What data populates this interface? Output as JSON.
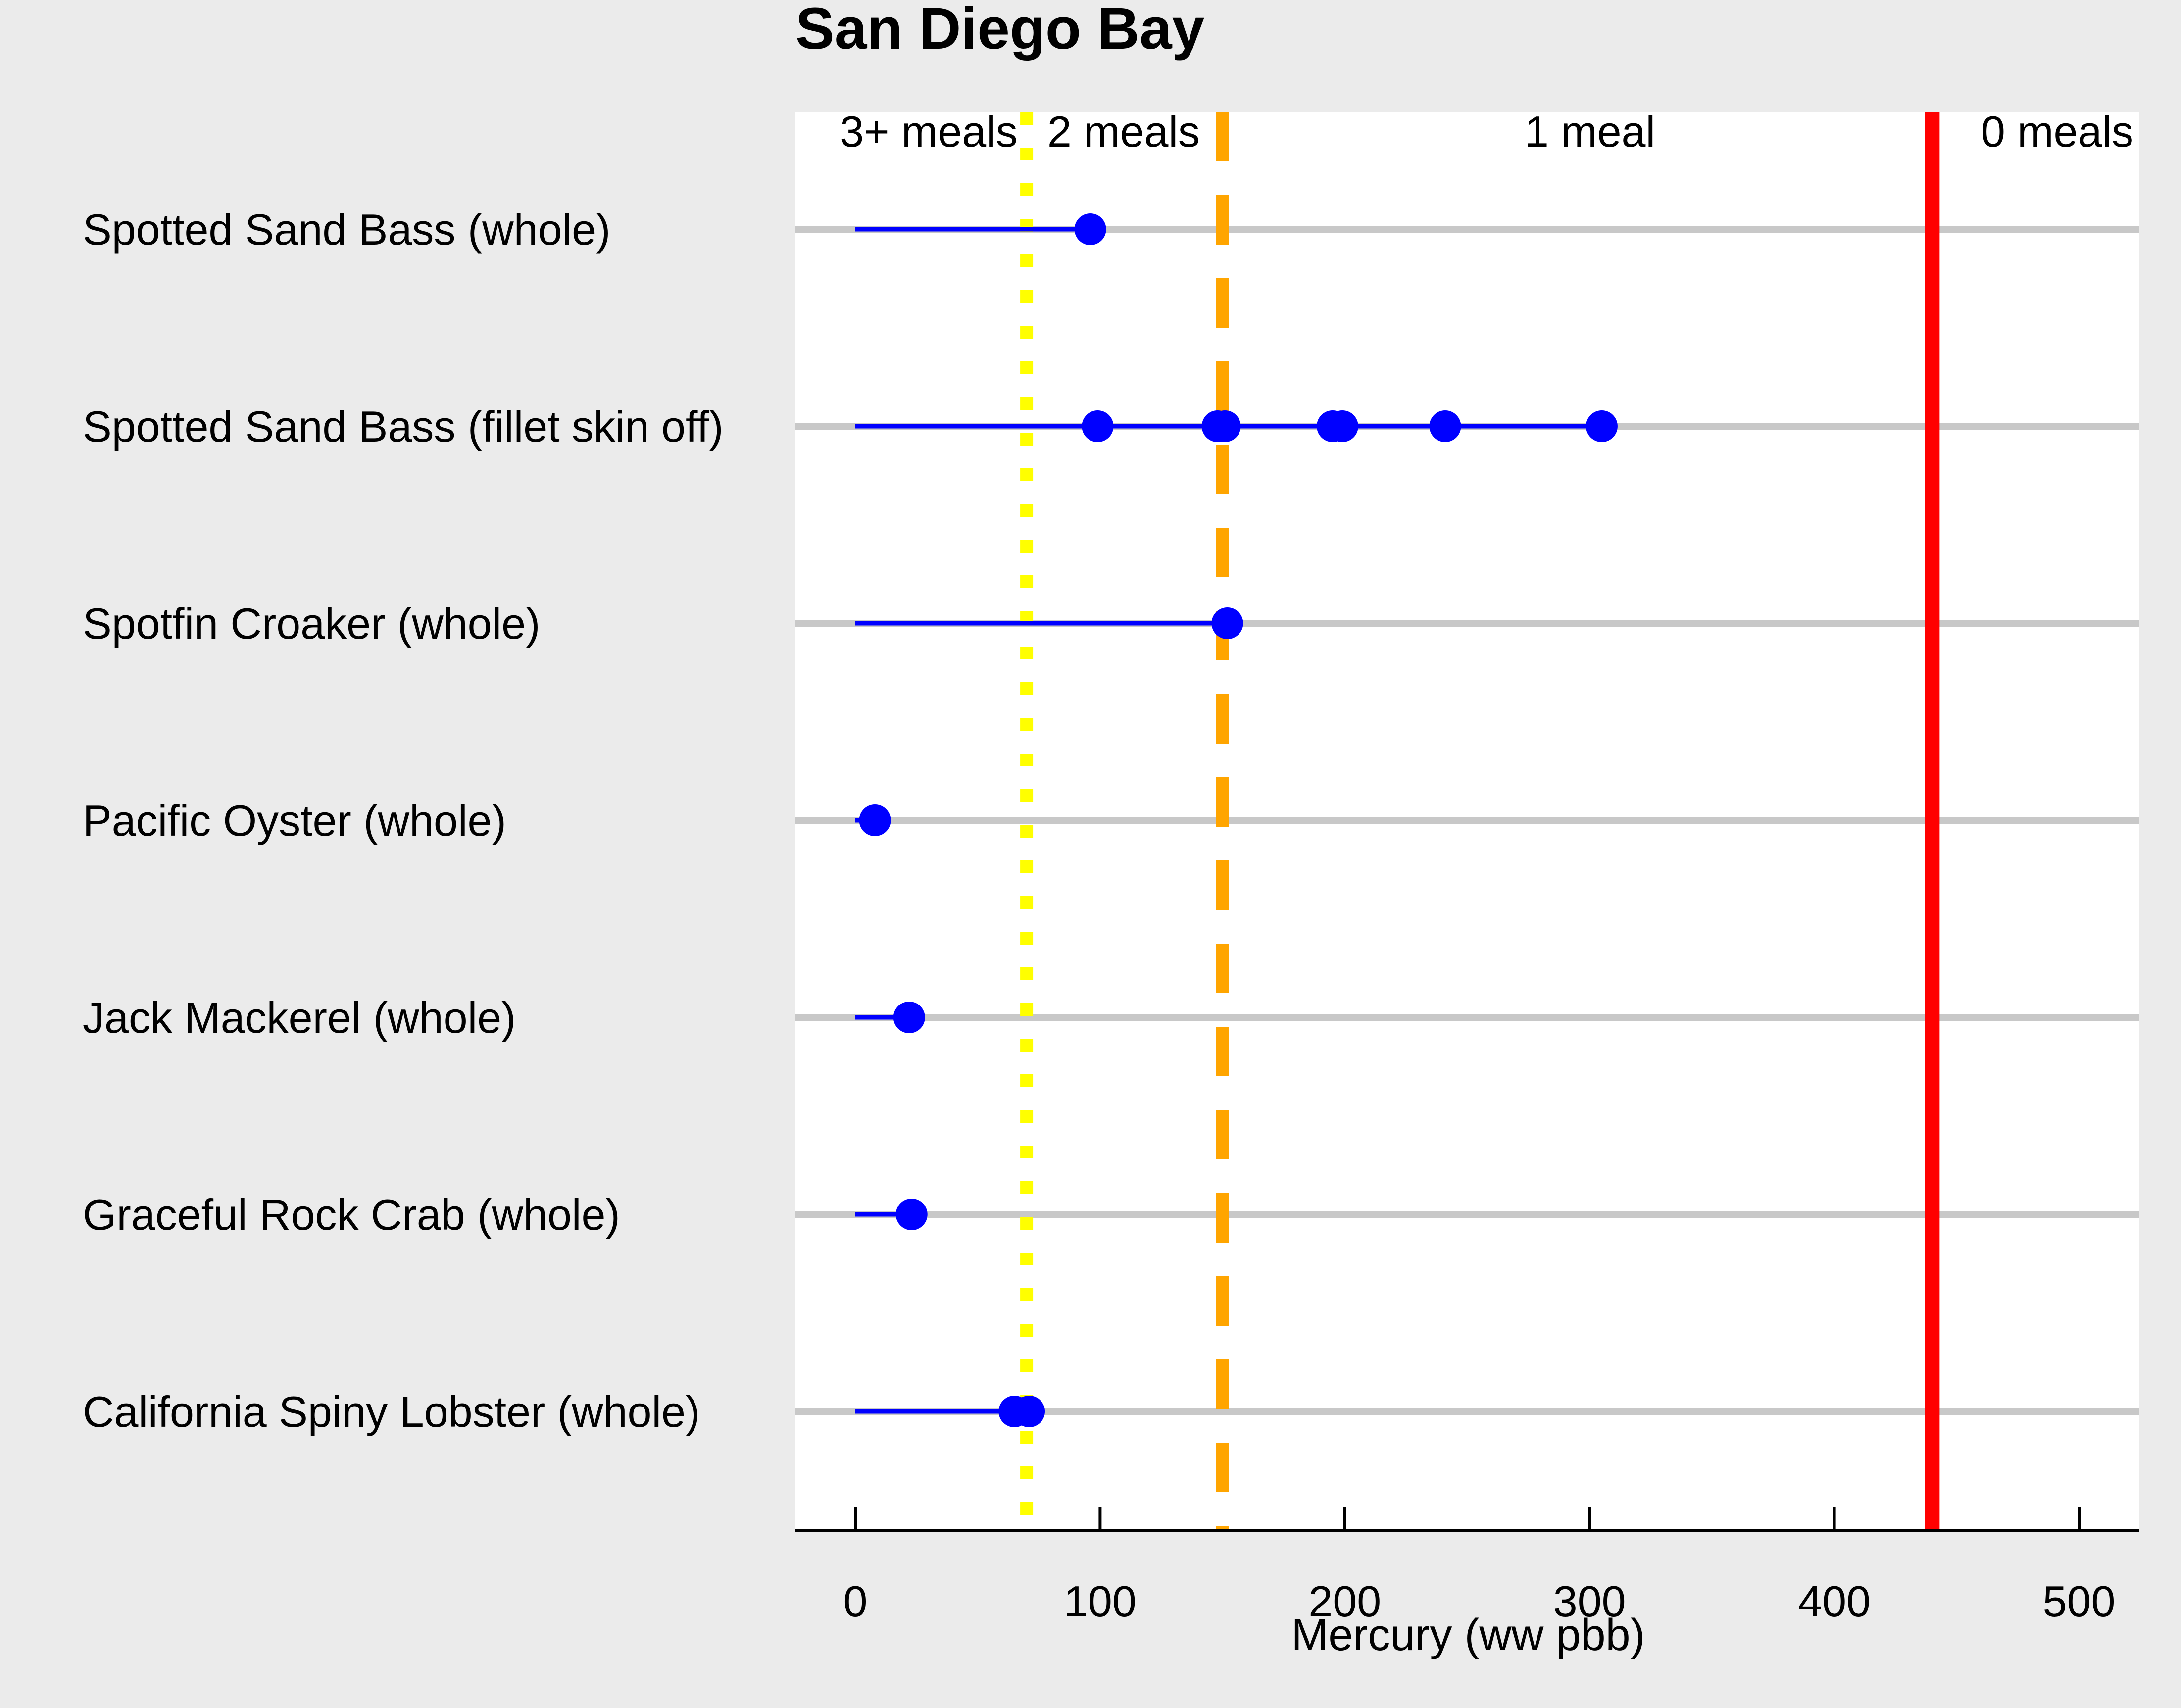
{
  "chart_data": {
    "type": "scatter",
    "title": "San Diego Bay",
    "xlabel": "Mercury (ww pbb)",
    "ylabel": "",
    "xlim": [
      -25,
      525
    ],
    "xticks": [
      0,
      100,
      200,
      300,
      400,
      500
    ],
    "xtick_labels": [
      "0",
      "100",
      "200",
      "300",
      "400",
      "500"
    ],
    "grid": true,
    "legend": "none",
    "categories": [
      "Spotted Sand Bass (whole)",
      "Spotted Sand Bass (fillet skin off)",
      "Spotfin Croaker (whole)",
      "Pacific Oyster (whole)",
      "Jack Mackerel (whole)",
      "Graceful Rock Crab (whole)",
      "California Spiny Lobster (whole)"
    ],
    "series": [
      {
        "values": [
          [
            96
          ]
        ]
      },
      {
        "values": [
          [
            99,
            148,
            151,
            195,
            199,
            241,
            305
          ]
        ]
      },
      {
        "values": [
          [
            152
          ]
        ]
      },
      {
        "values": [
          [
            8
          ]
        ]
      },
      {
        "values": [
          [
            22
          ]
        ]
      },
      {
        "values": [
          [
            23
          ]
        ]
      },
      {
        "values": [
          [
            65,
            71
          ]
        ]
      }
    ],
    "thresholds": [
      {
        "value": 70,
        "label": "3+ meals",
        "color": "#ffff00",
        "style": "dotted"
      },
      {
        "value": 150,
        "label": "2 meals",
        "color": "#ffa500",
        "style": "dashed"
      },
      {
        "value": 440,
        "label": "1 meal",
        "color": "#ff0000",
        "style": "solid"
      }
    ],
    "zone_labels": [
      "3+ meals",
      "2 meals",
      "1 meal",
      "0 meals"
    ],
    "colors": {
      "points": "#0000ff",
      "range_line": "#0000ff",
      "gridline": "#c8c8c8",
      "panel": "#ffffff",
      "background": "#ebebeb"
    }
  }
}
